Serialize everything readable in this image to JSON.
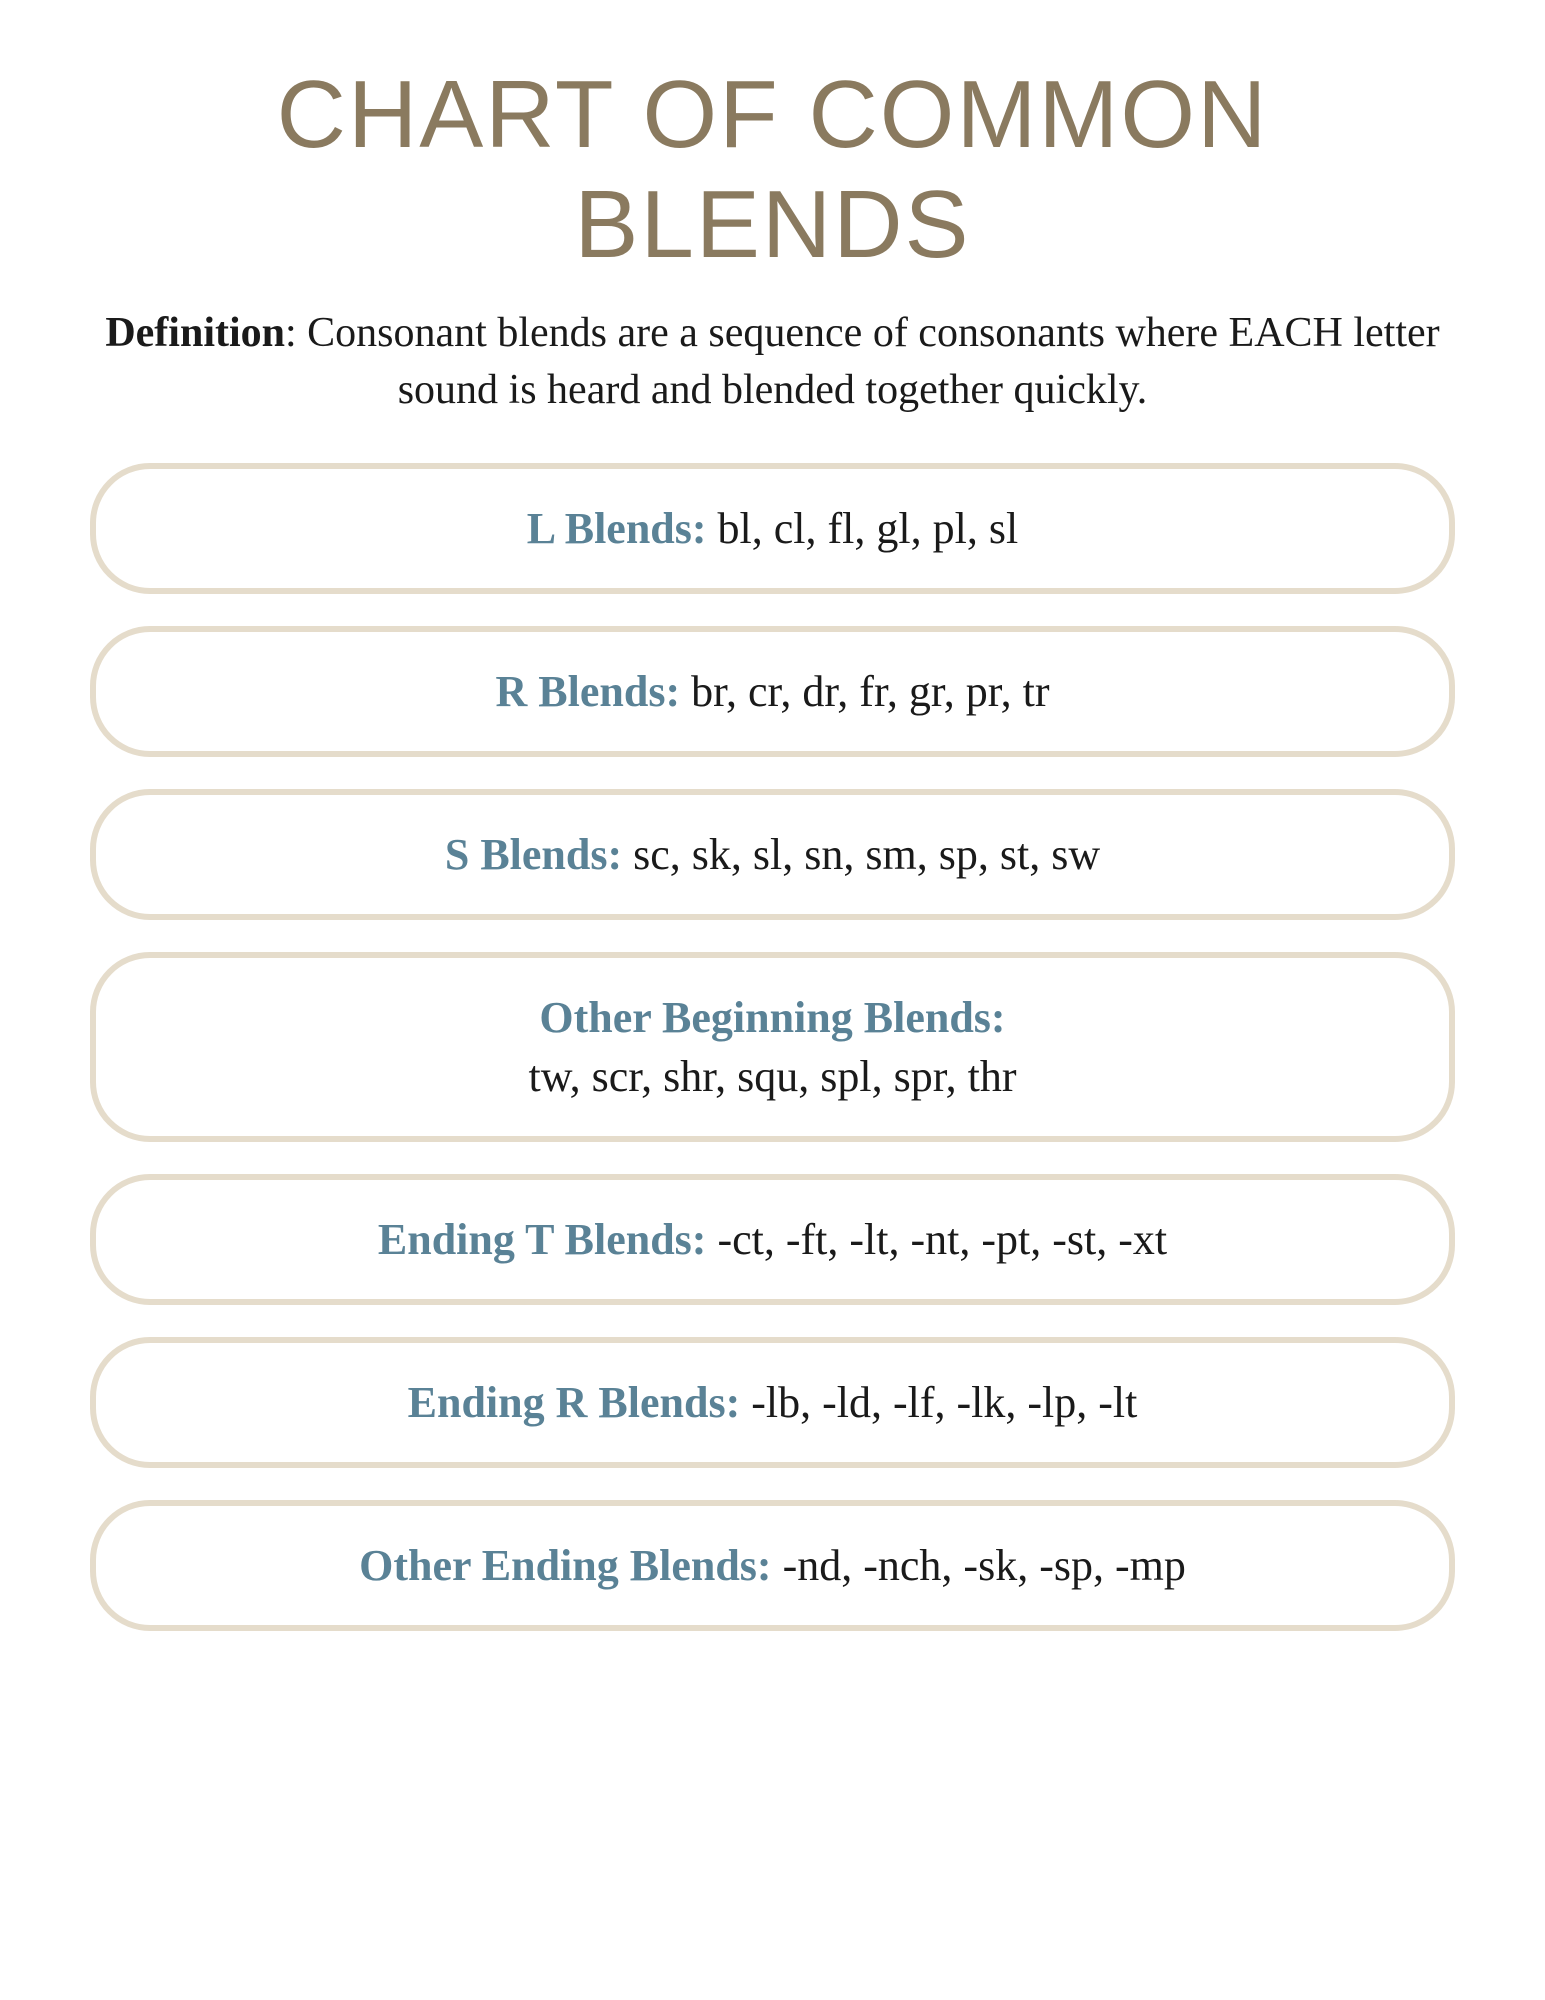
{
  "title": "Chart of Common Blends",
  "definition": {
    "label": "Definition",
    "text": ": Consonant blends are a sequence of consonants where EACH letter sound is heard and blended together quickly."
  },
  "style": {
    "title_color": "#8a7a5f",
    "title_fontsize": 96,
    "definition_fontsize": 42,
    "label_color": "#5a8296",
    "body_color": "#1a1a1a",
    "border_color": "#e5dccb",
    "border_width": 6,
    "border_radius": 60,
    "row_fontsize": 44,
    "background": "#ffffff",
    "row_gap": 32
  },
  "rows": [
    {
      "label": "L Blends:",
      "items": "bl, cl, fl, gl, pl, sl",
      "stacked": false
    },
    {
      "label": "R Blends:",
      "items": "br, cr, dr, fr, gr, pr, tr",
      "stacked": false
    },
    {
      "label": "S Blends:",
      "items": "sc, sk, sl, sn, sm, sp, st, sw",
      "stacked": false
    },
    {
      "label": "Other Beginning Blends:",
      "items": "tw, scr, shr, squ, spl, spr, thr",
      "stacked": true
    },
    {
      "label": "Ending T Blends:",
      "items": "-ct, -ft, -lt, -nt, -pt, -st, -xt",
      "stacked": false
    },
    {
      "label": "Ending R Blends:",
      "items": "-lb, -ld, -lf, -lk, -lp, -lt",
      "stacked": false
    },
    {
      "label": "Other Ending Blends:",
      "items": "-nd, -nch, -sk, -sp, -mp",
      "stacked": false
    }
  ]
}
